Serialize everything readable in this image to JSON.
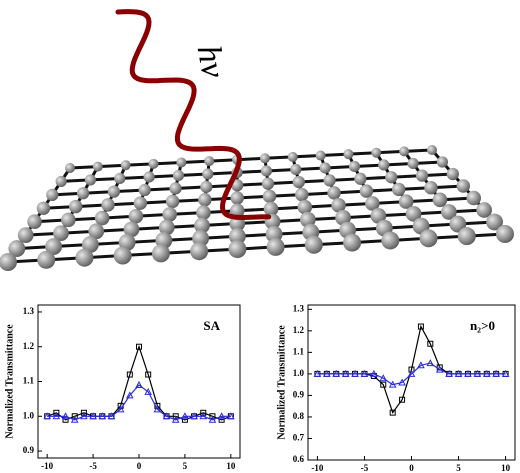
{
  "illustration": {
    "label": "hν"
  },
  "chart_data": [
    {
      "type": "line",
      "y_label": "Normalized Transmittance",
      "annotation": "SA",
      "x": [
        -10,
        -9,
        -8,
        -7,
        -6,
        -5,
        -4,
        -3,
        -2,
        -1,
        0,
        1,
        2,
        3,
        4,
        5,
        6,
        7,
        8,
        9,
        10
      ],
      "series": [
        {
          "color": "#000000",
          "marker": "square",
          "values": [
            1.0,
            1.01,
            0.99,
            1.0,
            1.01,
            1.0,
            1.0,
            1.0,
            1.03,
            1.12,
            1.2,
            1.12,
            1.03,
            1.0,
            1.0,
            0.99,
            1.0,
            1.01,
            1.0,
            0.99,
            1.0
          ]
        },
        {
          "color": "#2b2bd9",
          "marker": "triangle",
          "values": [
            1.0,
            1.0,
            1.0,
            0.99,
            1.0,
            1.0,
            1.0,
            1.0,
            1.02,
            1.06,
            1.09,
            1.07,
            1.02,
            1.0,
            0.99,
            1.0,
            1.0,
            1.0,
            0.99,
            1.0,
            1.0
          ]
        }
      ],
      "xlim": [
        -11,
        11
      ],
      "xticks": [
        -10,
        -5,
        0,
        5,
        10
      ],
      "ylim": [
        0.88,
        1.32
      ],
      "yticks": [
        0.9,
        {
          "value": 1,
          "label": "1.0"
        },
        1.1,
        1.2,
        1.3
      ]
    },
    {
      "type": "line",
      "y_label": "Normalized Transmittance",
      "annotation": "n₂>0",
      "x": [
        -10,
        -9,
        -8,
        -7,
        -6,
        -5,
        -4,
        -3,
        -2,
        -1,
        0,
        1,
        2,
        3,
        4,
        5,
        6,
        7,
        8,
        9,
        10
      ],
      "series": [
        {
          "color": "#000000",
          "marker": "square",
          "values": [
            1.0,
            1.0,
            1.0,
            1.0,
            1.0,
            1.0,
            0.99,
            0.95,
            0.82,
            0.88,
            1.02,
            1.22,
            1.14,
            1.03,
            1.0,
            1.0,
            1.0,
            1.0,
            1.0,
            1.0,
            1.0
          ]
        },
        {
          "color": "#2b2bd9",
          "marker": "triangle",
          "values": [
            1.0,
            1.0,
            1.0,
            1.0,
            1.0,
            1.0,
            1.0,
            0.98,
            0.95,
            0.96,
            1.0,
            1.04,
            1.05,
            1.02,
            1.0,
            1.0,
            1.0,
            1.0,
            1.0,
            1.0,
            1.0
          ]
        }
      ],
      "xlim": [
        -11,
        11
      ],
      "xticks": [
        -10,
        -5,
        0,
        5,
        10
      ],
      "ylim": [
        0.6,
        1.32
      ],
      "yticks": [
        0.6,
        0.7,
        0.8,
        0.9,
        {
          "value": 1,
          "label": "1.0"
        },
        1.1,
        1.2,
        1.3
      ]
    }
  ]
}
